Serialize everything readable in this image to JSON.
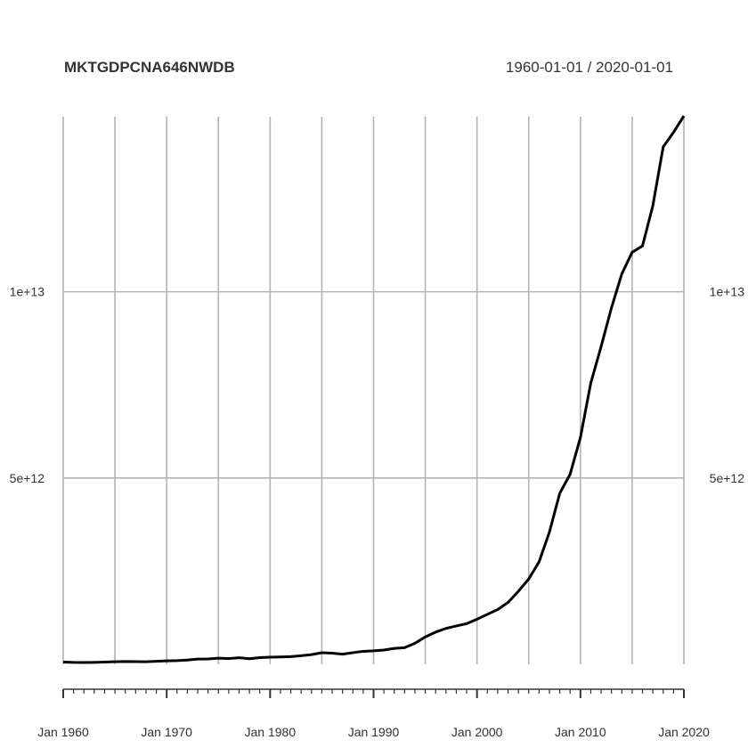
{
  "chart_data": {
    "type": "line",
    "title": "MKTGDPCNA646NWDB",
    "date_range": "1960-01-01 / 2020-01-01",
    "xlabel": "",
    "ylabel": "",
    "xlim": [
      1960,
      2020
    ],
    "ylim": [
      0,
      14700000000000
    ],
    "grid": true,
    "y_ticks": [
      {
        "value": 5000000000000,
        "label": "5e+12"
      },
      {
        "value": 10000000000000,
        "label": "1e+13"
      }
    ],
    "x_ticks": [
      {
        "value": 1960,
        "label": "Jan 1960"
      },
      {
        "value": 1970,
        "label": "Jan 1970"
      },
      {
        "value": 1980,
        "label": "Jan 1980"
      },
      {
        "value": 1990,
        "label": "Jan 1990"
      },
      {
        "value": 2000,
        "label": "Jan 2000"
      },
      {
        "value": 2010,
        "label": "Jan 2010"
      },
      {
        "value": 2020,
        "label": "Jan 2020"
      }
    ],
    "x_gridlines": [
      1960,
      1965,
      1970,
      1975,
      1980,
      1985,
      1990,
      1995,
      2000,
      2005,
      2010,
      2015,
      2020
    ],
    "series": [
      {
        "color": "#000000",
        "x": [
          1960,
          1961,
          1962,
          1963,
          1964,
          1965,
          1966,
          1967,
          1968,
          1969,
          1970,
          1971,
          1972,
          1973,
          1974,
          1975,
          1976,
          1977,
          1978,
          1979,
          1980,
          1981,
          1982,
          1983,
          1984,
          1985,
          1986,
          1987,
          1988,
          1989,
          1990,
          1991,
          1992,
          1993,
          1994,
          1995,
          1996,
          1997,
          1998,
          1999,
          2000,
          2001,
          2002,
          2003,
          2004,
          2005,
          2006,
          2007,
          2008,
          2009,
          2010,
          2011,
          2012,
          2013,
          2014,
          2015,
          2016,
          2017,
          2018,
          2019,
          2020
        ],
        "values": [
          60000000000,
          50000000000,
          47000000000,
          51000000000,
          60000000000,
          70000000000,
          76000000000,
          72000000000,
          70000000000,
          80000000000,
          92000000000,
          100000000000,
          114000000000,
          139000000000,
          144000000000,
          163000000000,
          154000000000,
          175000000000,
          150000000000,
          180000000000,
          191000000000,
          196000000000,
          205000000000,
          231000000000,
          260000000000,
          310000000000,
          300000000000,
          273000000000,
          312000000000,
          348000000000,
          361000000000,
          383000000000,
          427000000000,
          445000000000,
          564000000000,
          734000000000,
          864000000000,
          962000000000,
          1030000000000,
          1090000000000,
          1210000000000,
          1340000000000,
          1470000000000,
          1660000000000,
          1960000000000,
          2290000000000,
          2750000000000,
          3550000000000,
          4590000000000,
          5100000000000,
          6090000000000,
          7550000000000,
          8530000000000,
          9570000000000,
          10480000000000,
          11060000000000,
          11230000000000,
          12310000000000,
          13890000000000,
          14280000000000,
          14720000000000
        ]
      }
    ]
  }
}
